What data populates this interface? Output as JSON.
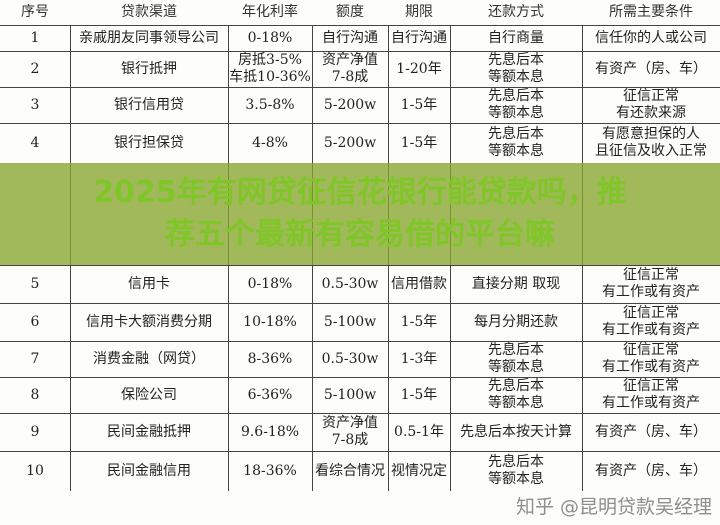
{
  "table": {
    "headers": [
      "序号",
      "贷款渠道",
      "年化利率",
      "额度",
      "期限",
      "还款方式",
      "所需主要条件"
    ],
    "rows": [
      [
        "1",
        "亲戚朋友同事领导公司",
        "0-18%",
        "自行沟通",
        "自行沟通",
        "自行商量",
        "信任你的人或公司"
      ],
      [
        "2",
        "银行抵押",
        "房抵3-5%\n车抵10-36%",
        "资产净值\n7-8成",
        "1-20年",
        "先息后本\n等额本息",
        "有资产（房、车）"
      ],
      [
        "3",
        "银行信用贷",
        "3.5-8%",
        "5-200w",
        "1-5年",
        "先息后本\n等额本息",
        "征信正常\n有还款来源"
      ],
      [
        "4",
        "银行担保贷",
        "4-8%",
        "5-200w",
        "1-5年",
        "先息后本\n等额本息",
        "有愿意担保的人\n且征信及收入正常"
      ],
      [
        "5",
        "信用卡",
        "0-18%",
        "0.5-30w",
        "信用借款",
        "直接分期 取现",
        "征信正常\n有工作或有资产"
      ],
      [
        "6",
        "信用卡大额消费分期",
        "10-18%",
        "5-100w",
        "1-5年",
        "每月分期还款",
        "征信正常\n有工作或有资产"
      ],
      [
        "7",
        "消费金融（网贷）",
        "8-36%",
        "0.5-30w",
        "1-3年",
        "先息后本\n等额本息",
        "征信正常\n有工作或有资产"
      ],
      [
        "8",
        "保险公司",
        "6-36%",
        "5-100w",
        "1-5年",
        "先息后本\n等额本息",
        "征信正常\n有工作或有资产"
      ],
      [
        "9",
        "民间金融抵押",
        "9.6-18%",
        "资产净值\n7-8成",
        "0.5-1年",
        "先息后本按天计算",
        "有资产（房、车）"
      ],
      [
        "10",
        "民间金融信用",
        "18-36%",
        "看综合情况",
        "视情况定",
        "先息后本\n等额本息",
        "有资产（房、车）"
      ]
    ]
  },
  "banner": {
    "line1": "2025年有网贷征信花银行能贷款吗，推",
    "line2": "荐五个最新有容易借的平台嘛"
  },
  "watermark": "知乎 @昆明贷款吴经理"
}
